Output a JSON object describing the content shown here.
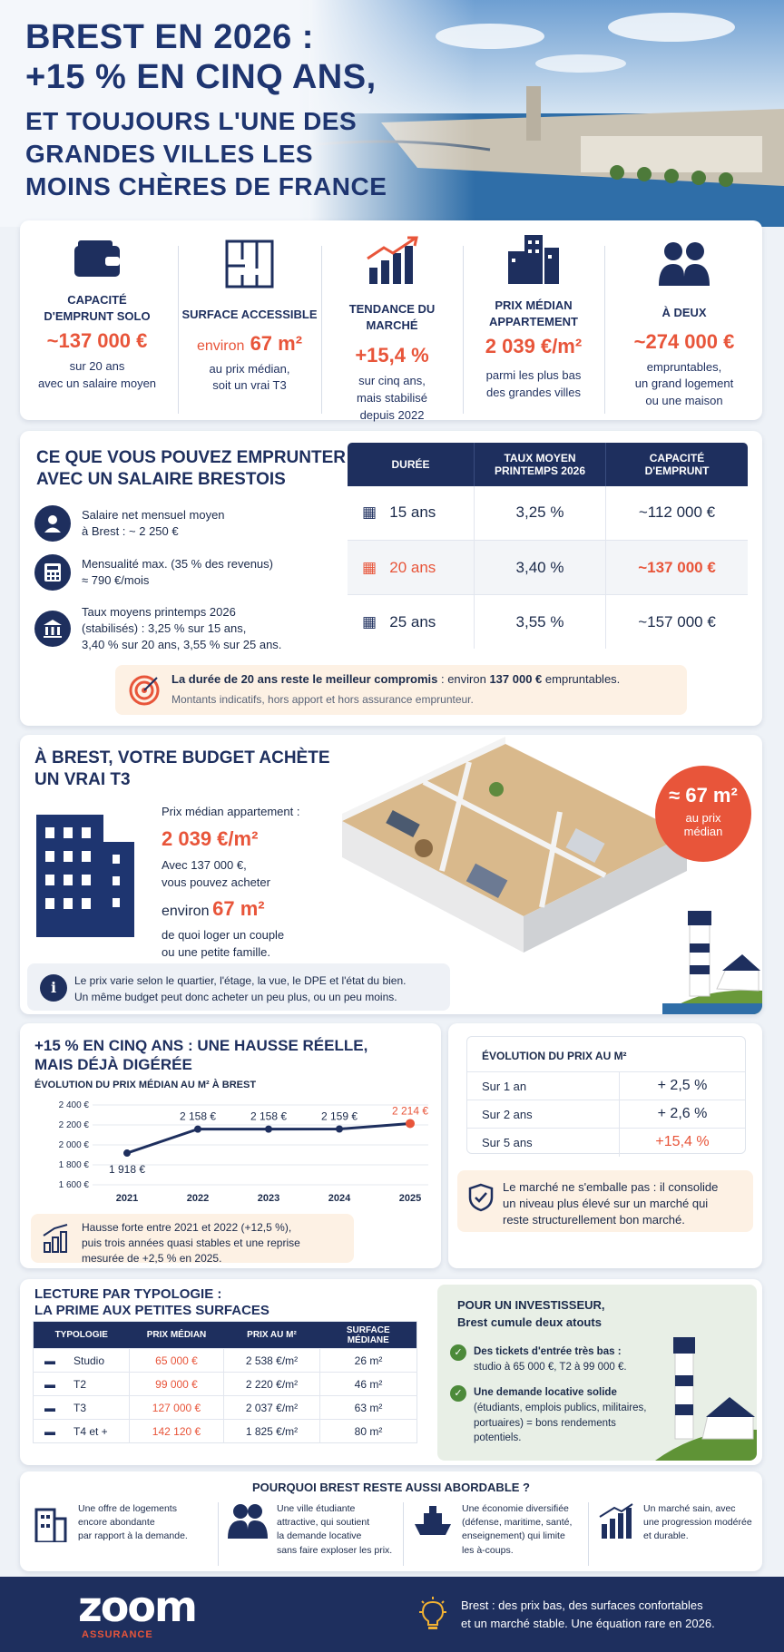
{
  "hero": {
    "title1": "BREST EN 2026 :",
    "title2": "+15 % EN CINQ ANS,",
    "title3": "ET TOUJOURS L'UNE DES",
    "title4": "GRANDES VILLES LES",
    "title5": "MOINS CHÈRES DE FRANCE"
  },
  "kpis": [
    {
      "label": "CAPACITÉ D'EMPRUNT SOLO",
      "value": "~137 000 €",
      "sub1": "sur 20 ans",
      "sub2": "avec un salaire moyen",
      "icon": "wallet-icon"
    },
    {
      "label": "SURFACE ACCESSIBLE",
      "value_pre": "environ",
      "value": "67 m²",
      "sub1": "au prix médian,",
      "sub2": "soit un vrai T3",
      "icon": "floorplan-icon"
    },
    {
      "label": "TENDANCE DU MARCHÉ",
      "value": "+15,4 %",
      "sub1": "sur cinq ans,",
      "sub2": "mais stabilisé",
      "sub3": "depuis 2022",
      "icon": "chart-up-icon"
    },
    {
      "label": "PRIX MÉDIAN APPARTEMENT",
      "value": "2 039 €/m²",
      "sub1": "parmi les plus bas",
      "sub2": "des grandes villes",
      "icon": "buildings-icon"
    },
    {
      "label": "À DEUX",
      "value": "~274 000 €",
      "sub1": "empruntables,",
      "sub2": "un grand logement",
      "sub3": "ou une maison",
      "icon": "couple-icon"
    }
  ],
  "borrow": {
    "title1": "CE QUE VOUS POUVEZ EMPRUNTER",
    "title2": "AVEC UN SALAIRE BRESTOIS",
    "items": [
      {
        "l1": "Salaire net mensuel moyen",
        "l2": "à Brest : ~ 2 250 €"
      },
      {
        "l1": "Mensualité max. (35 % des revenus)",
        "l2": "≈ 790 €/mois"
      },
      {
        "l1": "Taux moyens printemps 2026",
        "l2": "(stabilisés) : 3,25 % sur 15 ans,",
        "l3": "3,40 % sur 20 ans, 3,55 % sur 25 ans."
      }
    ],
    "headers": [
      "DURÉE",
      "TAUX MOYEN PRINTEMPS 2026",
      "CAPACITÉ D'EMPRUNT"
    ],
    "rows": [
      [
        "15 ans",
        "3,25 %",
        "~112 000 €"
      ],
      [
        "20 ans",
        "3,40 %",
        "~137 000 €"
      ],
      [
        "25 ans",
        "3,55 %",
        "~157 000 €"
      ]
    ],
    "note_bold": "La durée de 20 ans reste le meilleur compromis",
    "note_rest": " : environ ",
    "note_bold2": "137 000 €",
    "note_end": " empruntables.",
    "note2": "Montants indicatifs, hors apport et hors assurance emprunteur."
  },
  "t3": {
    "title1": "À BREST, VOTRE BUDGET ACHÈTE",
    "title2": "UN VRAI T3",
    "l1": "Prix médian appartement :",
    "price": "2 039 €/m²",
    "l2": "Avec 137 000 €,",
    "l3": "vous pouvez acheter",
    "env": "environ",
    "surf": "67 m²",
    "l4": "de quoi loger un couple",
    "l5": "ou une petite famille.",
    "badge_val": "≈ 67 m²",
    "badge_l1": "au prix",
    "badge_l2": "médian",
    "info1": "Le prix varie selon le quartier, l'étage, la vue, le DPE et l'état du bien.",
    "info2": "Un même budget peut donc acheter un peu plus, ou un peu moins."
  },
  "evo": {
    "title1": "+15 % EN CINQ ANS : UNE HAUSSE RÉELLE,",
    "title2": "MAIS DÉJÀ DIGÉRÉE",
    "chart_title": "ÉVOLUTION DU PRIX MÉDIAN AU M² À BREST",
    "note1": "Hausse forte entre 2021 et 2022 (+12,5 %),",
    "note2": "puis trois années quasi stables et une reprise",
    "note3": "mesurée de +2,5 % en 2025.",
    "table_title": "ÉVOLUTION DU PRIX AU M²",
    "rows": [
      [
        "Sur 1 an",
        "+ 2,5 %"
      ],
      [
        "Sur 2 ans",
        "+ 2,6 %"
      ],
      [
        "Sur 5 ans",
        "+15,4 %"
      ]
    ],
    "m1": "Le marché ne s'emballe pas : il consolide",
    "m2": "un niveau plus élevé sur un marché qui",
    "m3": "reste structurellement bon marché."
  },
  "chart_data": {
    "type": "line",
    "title": "ÉVOLUTION DU PRIX MÉDIAN AU M² À BREST",
    "x": [
      "2021",
      "2022",
      "2023",
      "2024",
      "2025"
    ],
    "values": [
      1918,
      2158,
      2158,
      2159,
      2214
    ],
    "labels": [
      "1 918 €",
      "2 158 €",
      "2 158 €",
      "2 159 €",
      "2 214 €"
    ],
    "yticks": [
      "2 400 €",
      "2 200 €",
      "2 000 €",
      "1 800 €",
      "1 600 €"
    ],
    "ylim": [
      1600,
      2400
    ],
    "grid": true
  },
  "typo": {
    "title1": "LECTURE PAR TYPOLOGIE :",
    "title2": "LA PRIME AUX PETITES SURFACES",
    "headers": [
      "TYPOLOGIE",
      "PRIX MÉDIAN",
      "PRIX AU M²",
      "SURFACE MÉDIANE"
    ],
    "rows": [
      [
        "Studio",
        "65 000 €",
        "2 538 €/m²",
        "26 m²"
      ],
      [
        "T2",
        "99 000 €",
        "2 220 €/m²",
        "46 m²"
      ],
      [
        "T3",
        "127 000 €",
        "2 037 €/m²",
        "63 m²"
      ],
      [
        "T4 et +",
        "142 120 €",
        "1 825 €/m²",
        "80 m²"
      ]
    ]
  },
  "invest": {
    "title1": "POUR UN INVESTISSEUR,",
    "title2": "Brest cumule deux atouts",
    "a1b": "Des tickets d'entrée très bas :",
    "a1": "studio à 65 000 €, T2 à 99 000 €.",
    "a2b": "Une demande locative solide",
    "a2": "(étudiants, emplois publics, militaires,",
    "a3": "portuaires) = bons rendements",
    "a4": "potentiels."
  },
  "why": {
    "title": "POURQUOI BREST RESTE AUSSI ABORDABLE ?",
    "items": [
      [
        "Une offre de logements",
        "encore abondante",
        "par rapport à la demande."
      ],
      [
        "Une ville étudiante",
        "attractive, qui soutient",
        "la demande locative",
        "sans faire exploser les prix."
      ],
      [
        "Une économie diversifiée",
        "(défense, maritime, santé,",
        "enseignement) qui limite",
        "les à-coups."
      ],
      [
        "Un marché sain, avec",
        "une progression modérée",
        "et durable."
      ]
    ]
  },
  "footer": {
    "logo": "zoom",
    "logo_sub": "ASSURANCE",
    "t1": "Brest : des prix bas, des surfaces confortables",
    "t2": "et un marché stable. Une équation rare en 2026."
  },
  "colors": {
    "navy": "#1e2f5e",
    "orange": "#e8553a",
    "bg": "#eef2f7"
  }
}
